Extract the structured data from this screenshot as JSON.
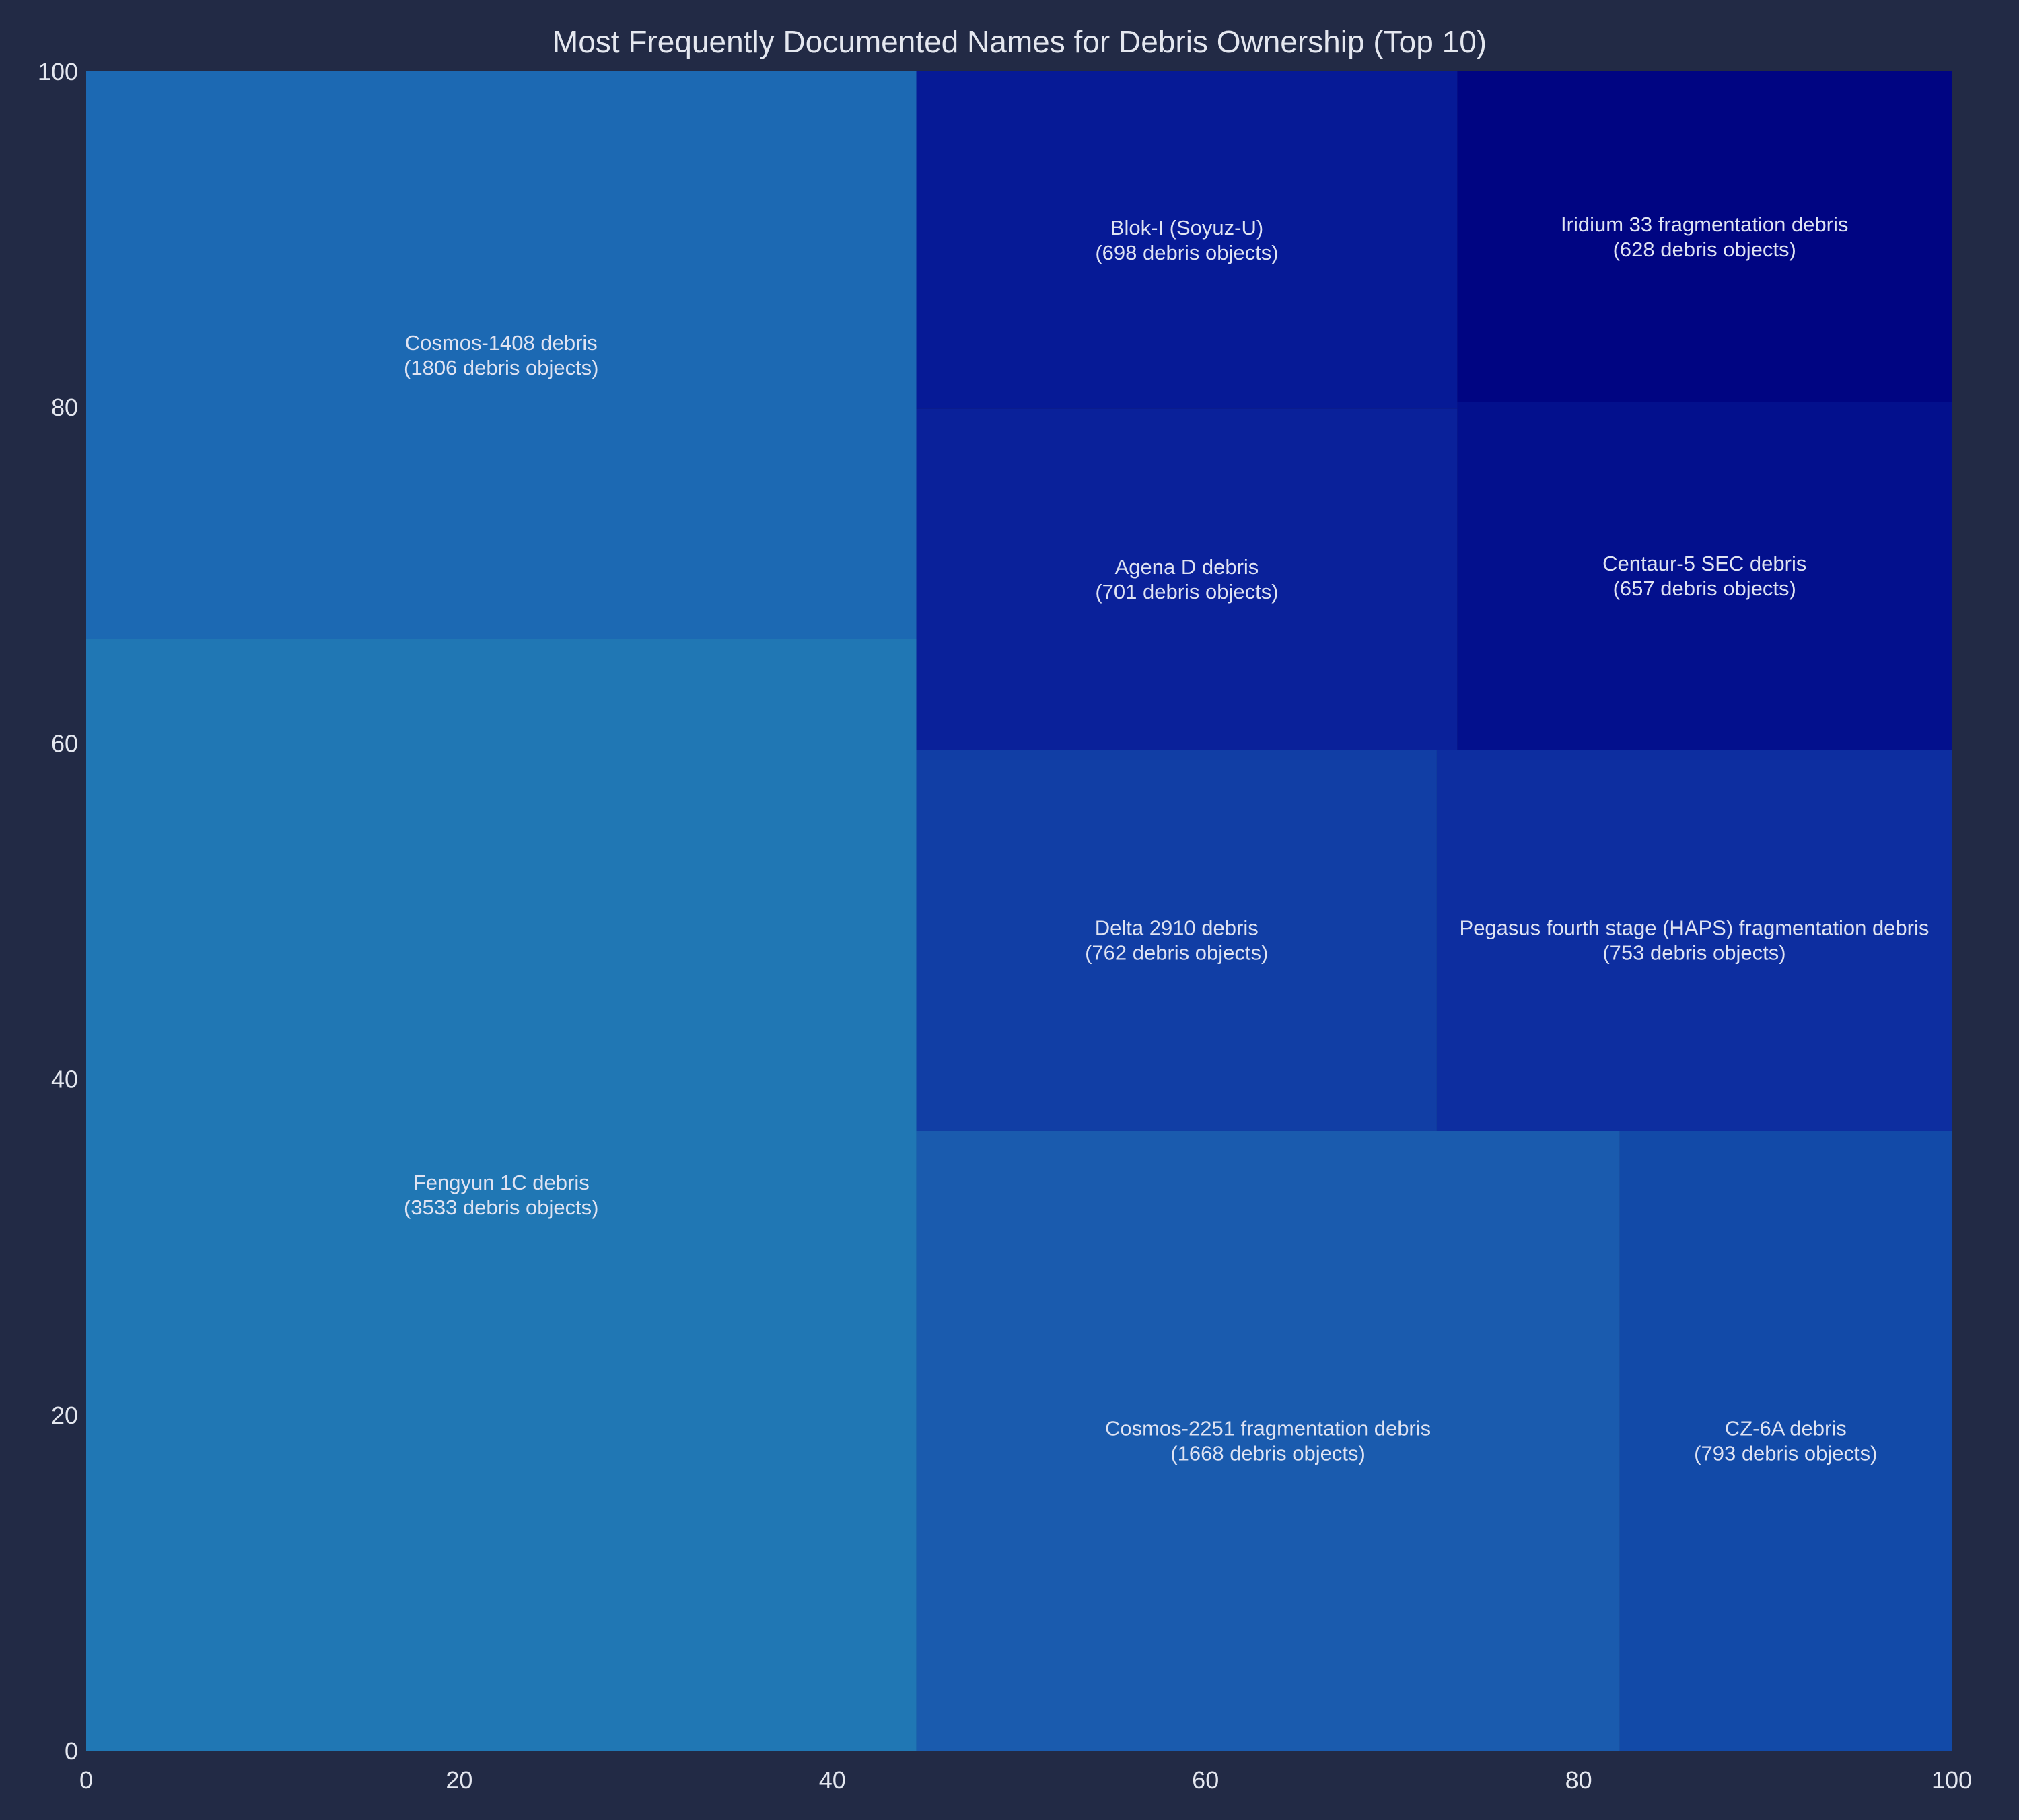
{
  "chart_data": {
    "type": "treemap",
    "title": "Most Frequently Documented Names for Debris Ownership (Top 10)",
    "xlabel": "",
    "ylabel": "",
    "xlim": [
      0,
      100
    ],
    "ylim": [
      0,
      100
    ],
    "x_ticks": [
      "0",
      "20",
      "40",
      "60",
      "80",
      "100"
    ],
    "y_ticks": [
      "0",
      "20",
      "40",
      "60",
      "80",
      "100"
    ],
    "count_template": "({n} debris objects)",
    "items": [
      {
        "name": "Fengyun 1C debris",
        "value": 3533,
        "count_label": "(3533 debris objects)",
        "x0": 0,
        "x1": 44.5,
        "y0": 0,
        "y1": 66.2,
        "color": "#2077b4"
      },
      {
        "name": "Cosmos-1408 debris",
        "value": 1806,
        "count_label": "(1806 debris objects)",
        "x0": 0,
        "x1": 44.5,
        "y0": 66.2,
        "y1": 100,
        "color": "#1c69b3"
      },
      {
        "name": "Cosmos-2251 fragmentation debris",
        "value": 1668,
        "count_label": "(1668 debris objects)",
        "x0": 44.5,
        "x1": 82.2,
        "y0": 0,
        "y1": 36.9,
        "color": "#1a5bae"
      },
      {
        "name": "CZ-6A debris",
        "value": 793,
        "count_label": "(793 debris objects)",
        "x0": 82.2,
        "x1": 100,
        "y0": 0,
        "y1": 36.9,
        "color": "#124aa8"
      },
      {
        "name": "Delta 2910 debris",
        "value": 762,
        "count_label": "(762 debris objects)",
        "x0": 44.5,
        "x1": 72.4,
        "y0": 36.9,
        "y1": 59.6,
        "color": "#113ea5"
      },
      {
        "name": "Pegasus fourth stage (HAPS) fragmentation debris",
        "value": 753,
        "count_label": "(753 debris objects)",
        "x0": 72.4,
        "x1": 100,
        "y0": 36.9,
        "y1": 59.6,
        "color": "#0d2ea0"
      },
      {
        "name": "Agena D debris",
        "value": 701,
        "count_label": "(701 debris objects)",
        "x0": 44.5,
        "x1": 73.5,
        "y0": 59.6,
        "y1": 79.9,
        "color": "#0a219a"
      },
      {
        "name": "Blok-I (Soyuz-U)",
        "value": 698,
        "count_label": "(698 debris objects)",
        "x0": 44.5,
        "x1": 73.5,
        "y0": 79.9,
        "y1": 100,
        "color": "#061a96"
      },
      {
        "name": "Centaur-5 SEC debris",
        "value": 657,
        "count_label": "(657 debris objects)",
        "x0": 73.5,
        "x1": 100,
        "y0": 59.6,
        "y1": 80.3,
        "color": "#03108d"
      },
      {
        "name": "Iridium 33 fragmentation debris",
        "value": 628,
        "count_label": "(628 debris objects)",
        "x0": 73.5,
        "x1": 100,
        "y0": 80.3,
        "y1": 100,
        "color": "#000582"
      }
    ],
    "colors": {
      "background": "#222a45",
      "text": "#e4e7ef",
      "label_text": "#dfe3f2"
    }
  }
}
